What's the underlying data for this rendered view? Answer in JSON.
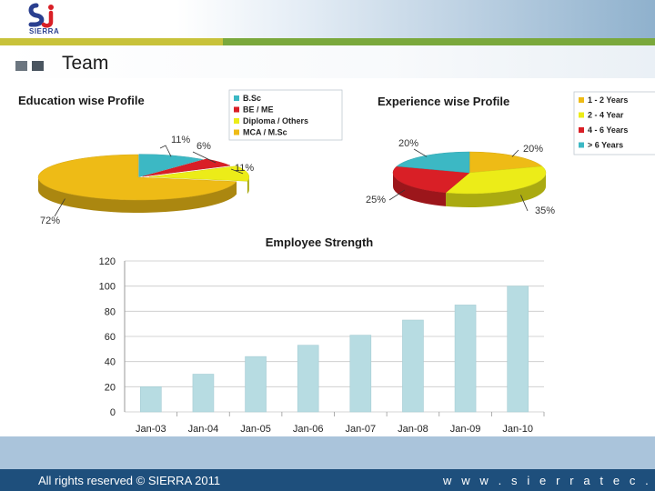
{
  "header": {
    "logo_text": "SIERRA",
    "slide_title": "Team"
  },
  "footer": {
    "copyright": "All rights reserved © SIERRA 2011",
    "website": "w w w . s i e r r a t e c . c o m"
  },
  "chart_data": [
    {
      "type": "pie",
      "title": "Education wise Profile",
      "legend_position": "top-right",
      "slices": [
        {
          "name": "B.Sc",
          "value": 11,
          "label": "11%",
          "color": "#3cb8c4"
        },
        {
          "name": "BE / ME",
          "value": 6,
          "label": "6%",
          "color": "#d91f26"
        },
        {
          "name": "Diploma / Others",
          "value": 11,
          "label": "11%",
          "color": "#ecec18"
        },
        {
          "name": "MCA / M.Sc",
          "value": 72,
          "label": "72%",
          "color": "#eebb16"
        }
      ]
    },
    {
      "type": "pie",
      "title": "Experience wise Profile",
      "legend_position": "top-right",
      "slices": [
        {
          "name": "1 - 2 Years",
          "value": 20,
          "label": "20%",
          "color": "#eebb16"
        },
        {
          "name": "2 - 4 Year",
          "value": 35,
          "label": "35%",
          "color": "#ecec18"
        },
        {
          "name": "4 - 6 Years",
          "value": 25,
          "label": "25%",
          "color": "#d91f26"
        },
        {
          "name": "> 6 Years",
          "value": 20,
          "label": "20%",
          "color": "#3cb8c4"
        }
      ]
    },
    {
      "type": "bar",
      "title": "Employee Strength",
      "categories": [
        "Jan-03",
        "Jan-04",
        "Jan-05",
        "Jan-06",
        "Jan-07",
        "Jan-08",
        "Jan-09",
        "Jan-10"
      ],
      "values": [
        20,
        30,
        44,
        53,
        61,
        73,
        85,
        100
      ],
      "ylim": [
        0,
        120
      ],
      "yticks": [
        0,
        20,
        40,
        60,
        80,
        100,
        120
      ],
      "grid": true,
      "bar_color": "#b7dce2"
    }
  ]
}
